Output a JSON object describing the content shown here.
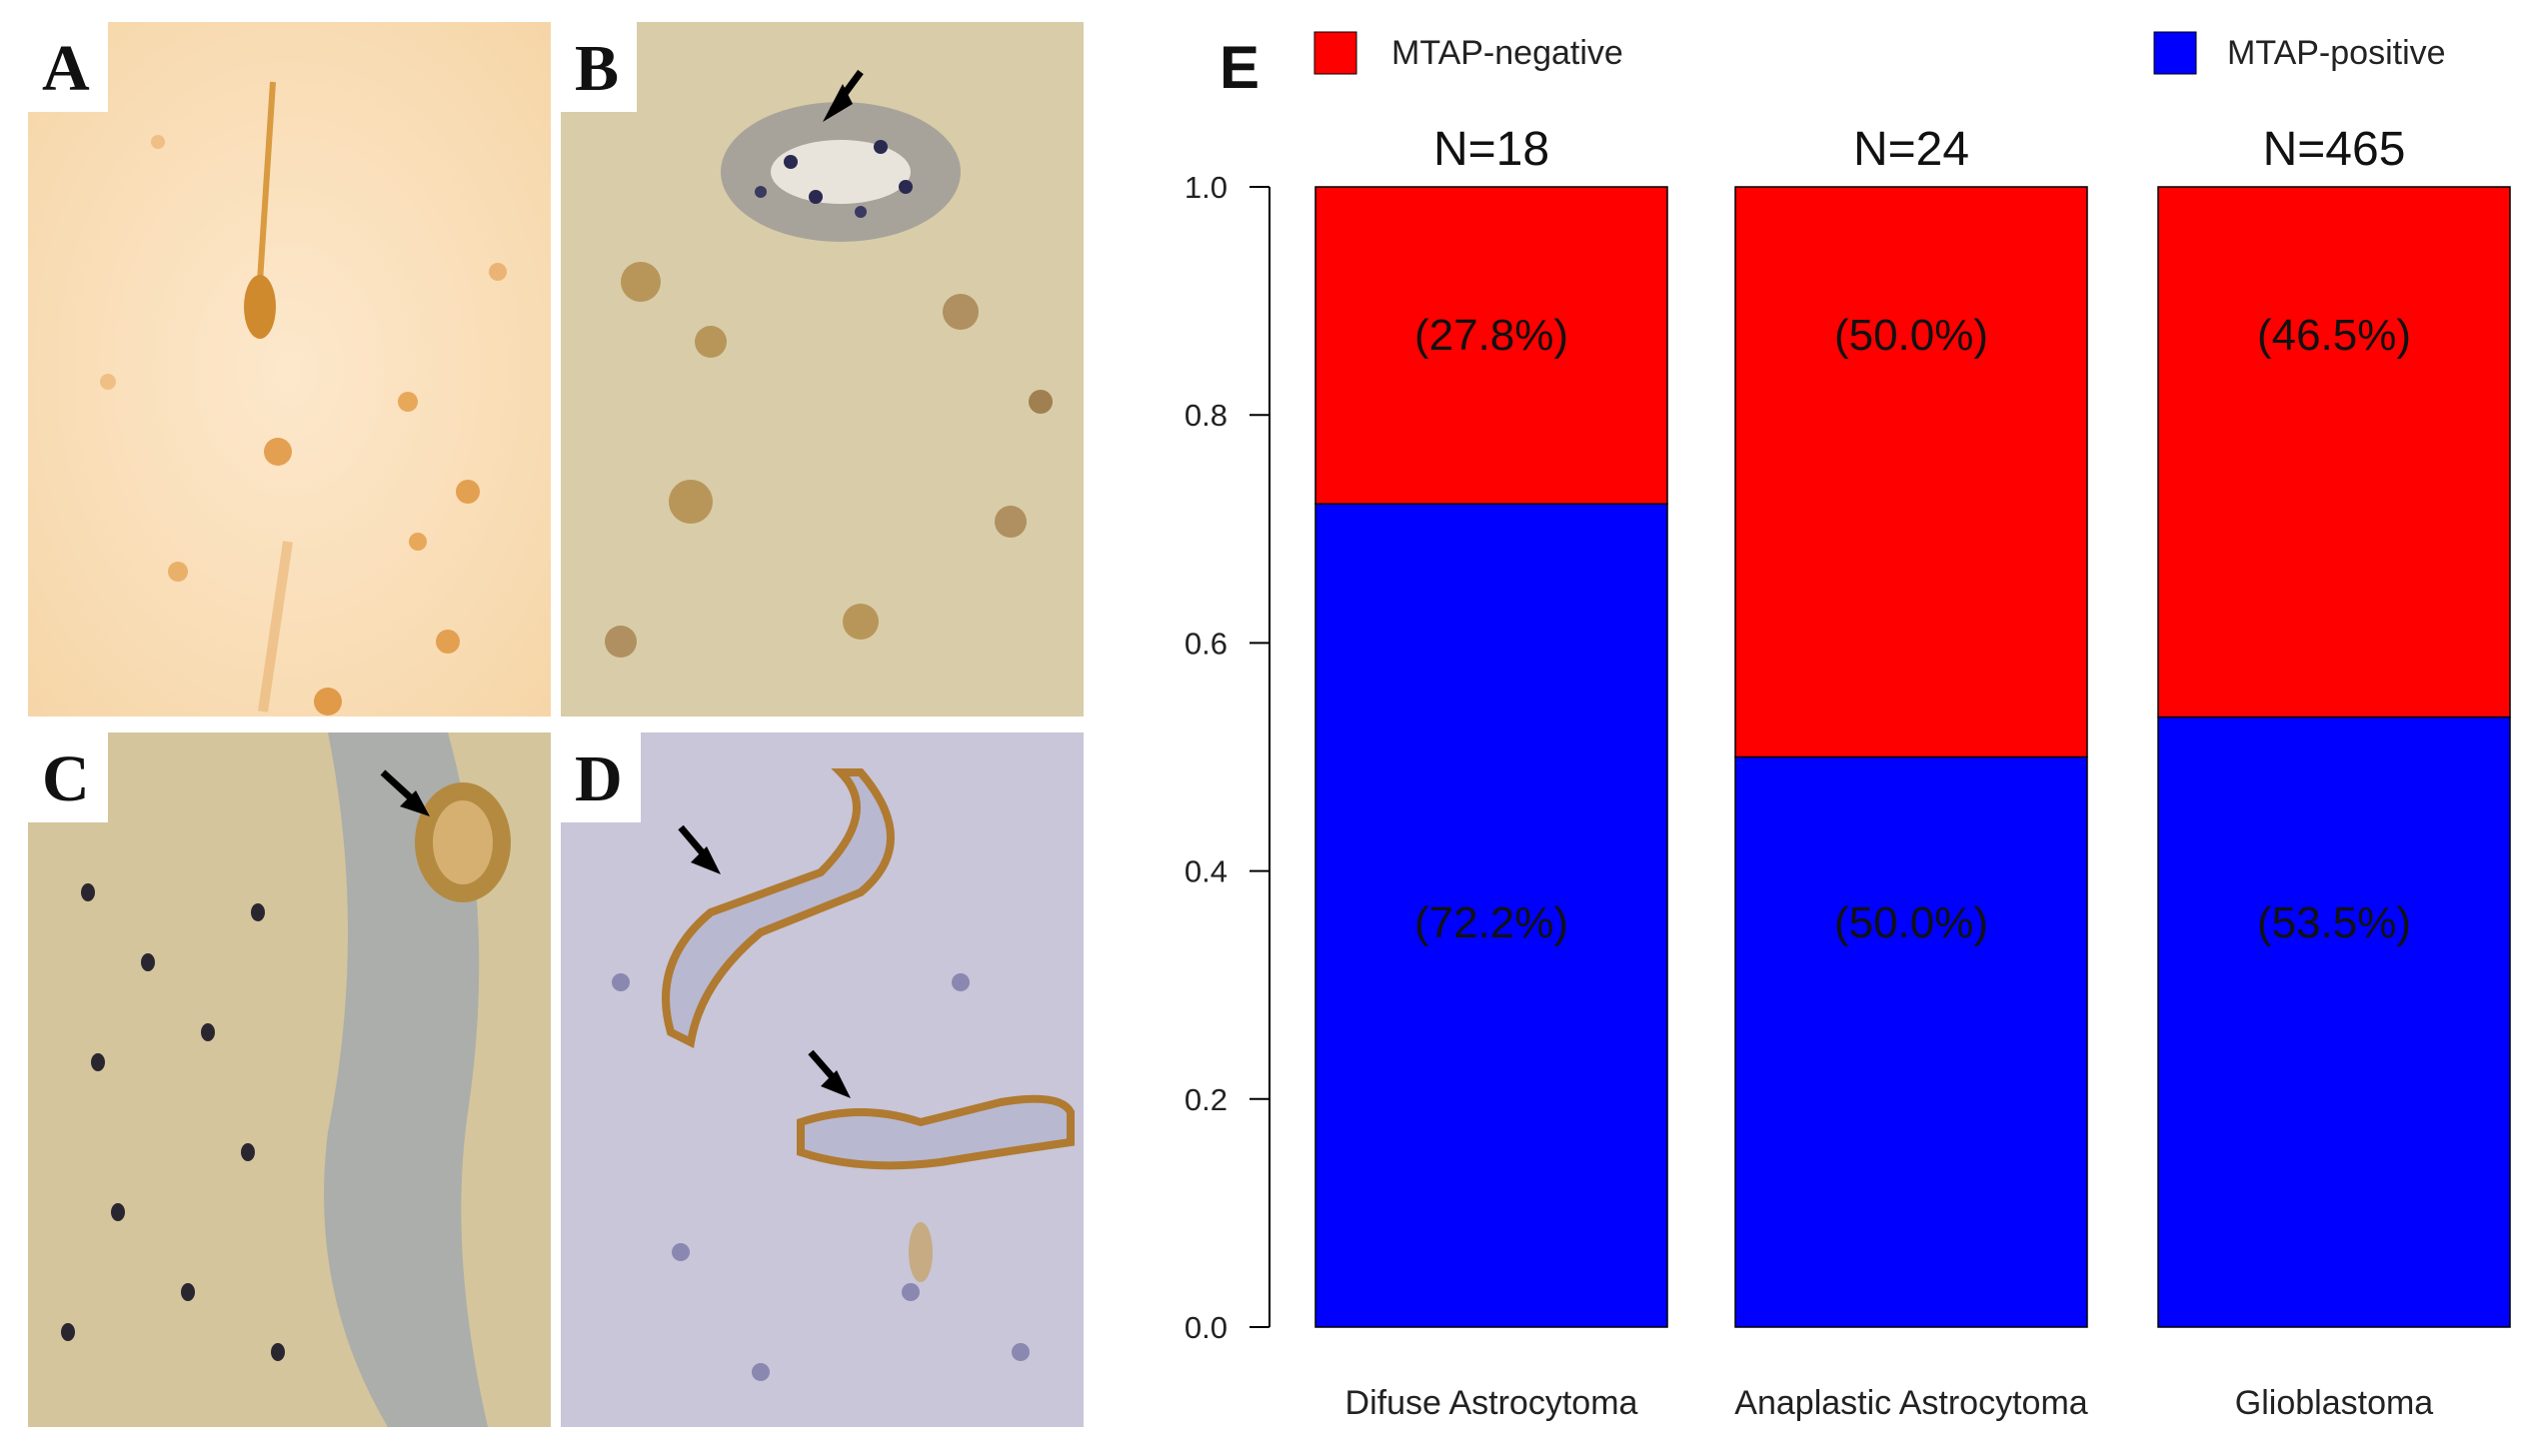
{
  "panels": [
    {
      "letter": "A"
    },
    {
      "letter": "B"
    },
    {
      "letter": "C"
    },
    {
      "letter": "D"
    }
  ],
  "colors": {
    "negative": "#ff0000",
    "positive": "#0000ff"
  },
  "chart_letter": "E",
  "chart_data": {
    "type": "bar",
    "stacked": true,
    "categories": [
      "Difuse Astrocytoma",
      "Anaplastic Astrocytoma",
      "Glioblastoma"
    ],
    "n_labels": [
      "N=18",
      "N=24",
      "N=465"
    ],
    "series": [
      {
        "name": "MTAP-positive",
        "values": [
          0.722,
          0.5,
          0.535
        ],
        "labels": [
          "(72.2%)",
          "(50.0%)",
          "(53.5%)"
        ],
        "color": "#0000ff"
      },
      {
        "name": "MTAP-negative",
        "values": [
          0.278,
          0.5,
          0.465
        ],
        "labels": [
          "(27.8%)",
          "(50.0%)",
          "(46.5%)"
        ],
        "color": "#ff0000"
      }
    ],
    "ylim": [
      0,
      1
    ],
    "yticks": [
      "0.0",
      "0.2",
      "0.4",
      "0.6",
      "0.8",
      "1.0"
    ],
    "xlabel": "",
    "ylabel": "",
    "legend": [
      {
        "name": "MTAP-negative",
        "color": "#ff0000",
        "placement": "top-left"
      },
      {
        "name": "MTAP-positive",
        "color": "#0000ff",
        "placement": "top-right"
      }
    ],
    "grid": false
  }
}
